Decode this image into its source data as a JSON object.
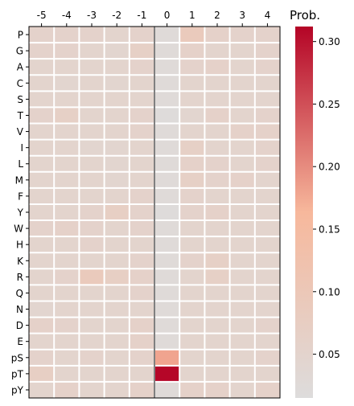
{
  "chart_data": {
    "type": "heatmap",
    "x_labels": [
      "-5",
      "-4",
      "-3",
      "-2",
      "-1",
      "0",
      "1",
      "2",
      "3",
      "4"
    ],
    "y_labels": [
      "P",
      "G",
      "A",
      "C",
      "S",
      "T",
      "V",
      "I",
      "L",
      "M",
      "F",
      "Y",
      "W",
      "H",
      "K",
      "R",
      "Q",
      "N",
      "D",
      "E",
      "pS",
      "pT",
      "pY"
    ],
    "values": [
      [
        0.055,
        0.055,
        0.055,
        0.05,
        0.055,
        0.025,
        0.09,
        0.06,
        0.055,
        0.055
      ],
      [
        0.055,
        0.055,
        0.05,
        0.045,
        0.065,
        0.025,
        0.06,
        0.05,
        0.05,
        0.055
      ],
      [
        0.05,
        0.05,
        0.05,
        0.05,
        0.055,
        0.025,
        0.055,
        0.06,
        0.05,
        0.055
      ],
      [
        0.05,
        0.045,
        0.05,
        0.045,
        0.05,
        0.025,
        0.05,
        0.05,
        0.05,
        0.05
      ],
      [
        0.05,
        0.05,
        0.05,
        0.05,
        0.05,
        0.025,
        0.05,
        0.05,
        0.05,
        0.05
      ],
      [
        0.055,
        0.065,
        0.05,
        0.05,
        0.055,
        0.02,
        0.045,
        0.06,
        0.05,
        0.055
      ],
      [
        0.05,
        0.05,
        0.05,
        0.05,
        0.055,
        0.025,
        0.05,
        0.05,
        0.06,
        0.06
      ],
      [
        0.05,
        0.05,
        0.045,
        0.045,
        0.05,
        0.025,
        0.065,
        0.05,
        0.05,
        0.055
      ],
      [
        0.05,
        0.05,
        0.05,
        0.045,
        0.05,
        0.025,
        0.06,
        0.055,
        0.05,
        0.055
      ],
      [
        0.05,
        0.05,
        0.05,
        0.045,
        0.05,
        0.025,
        0.065,
        0.055,
        0.06,
        0.05
      ],
      [
        0.05,
        0.05,
        0.05,
        0.05,
        0.055,
        0.025,
        0.055,
        0.05,
        0.05,
        0.05
      ],
      [
        0.05,
        0.05,
        0.055,
        0.07,
        0.055,
        0.02,
        0.055,
        0.06,
        0.05,
        0.05
      ],
      [
        0.055,
        0.06,
        0.055,
        0.05,
        0.055,
        0.025,
        0.05,
        0.05,
        0.05,
        0.05
      ],
      [
        0.05,
        0.05,
        0.055,
        0.05,
        0.05,
        0.025,
        0.05,
        0.05,
        0.05,
        0.05
      ],
      [
        0.05,
        0.05,
        0.05,
        0.05,
        0.055,
        0.025,
        0.055,
        0.065,
        0.05,
        0.05
      ],
      [
        0.05,
        0.055,
        0.09,
        0.07,
        0.06,
        0.025,
        0.05,
        0.065,
        0.05,
        0.05
      ],
      [
        0.05,
        0.05,
        0.05,
        0.05,
        0.055,
        0.025,
        0.05,
        0.05,
        0.05,
        0.05
      ],
      [
        0.045,
        0.05,
        0.05,
        0.05,
        0.05,
        0.025,
        0.05,
        0.05,
        0.05,
        0.05
      ],
      [
        0.06,
        0.055,
        0.05,
        0.05,
        0.06,
        0.025,
        0.05,
        0.05,
        0.05,
        0.055
      ],
      [
        0.05,
        0.05,
        0.05,
        0.05,
        0.06,
        0.025,
        0.05,
        0.05,
        0.05,
        0.05
      ],
      [
        0.055,
        0.05,
        0.055,
        0.05,
        0.055,
        0.18,
        0.05,
        0.05,
        0.05,
        0.055
      ],
      [
        0.07,
        0.05,
        0.05,
        0.05,
        0.05,
        0.31,
        0.05,
        0.05,
        0.05,
        0.05
      ],
      [
        0.05,
        0.06,
        0.05,
        0.05,
        0.06,
        0.025,
        0.06,
        0.06,
        0.05,
        0.06
      ]
    ],
    "colorbar": {
      "label": "Prob.",
      "range": [
        0.015,
        0.312
      ],
      "ticks": [
        0.05,
        0.1,
        0.15,
        0.2,
        0.25,
        0.3
      ],
      "tick_labels": [
        "0.05",
        "0.10",
        "0.15",
        "0.20",
        "0.25",
        "0.30"
      ],
      "colormap": "coolwarm (upper half)",
      "colors": [
        "#dddcdc",
        "#f7b89c",
        "#b40426"
      ]
    },
    "x_axis_position": "top",
    "divider_after_column": "-1",
    "grid": true,
    "grid_color": "#ffffff"
  }
}
